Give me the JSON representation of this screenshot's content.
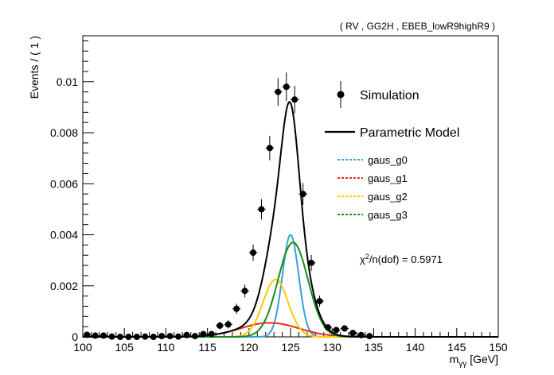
{
  "chart_data": {
    "type": "line",
    "title": "( RV , GG2H , EBEB_lowR9highR9 )",
    "xlabel_main": "m",
    "xlabel_sub": "γγ",
    "xlabel_unit": " [GeV]",
    "ylabel": "Events / ( 1 )",
    "xlim": [
      100,
      150
    ],
    "ylim": [
      0,
      0.0118
    ],
    "xticks": [
      100,
      105,
      110,
      115,
      120,
      125,
      130,
      135,
      140,
      145,
      150
    ],
    "xtick_labels": [
      "100",
      "105",
      "110",
      "115",
      "120",
      "125",
      "130",
      "135",
      "140",
      "145",
      "150"
    ],
    "yticks": [
      0,
      0.002,
      0.004,
      0.006,
      0.008,
      0.01
    ],
    "ytick_labels": [
      "0",
      "0.002",
      "0.004",
      "0.006",
      "0.008",
      "0.01"
    ],
    "grid": false,
    "legend_position": "right",
    "legend": {
      "simulation": "Simulation",
      "model": "Parametric Model",
      "components": [
        "gaus_g0",
        "gaus_g1",
        "gaus_g2",
        "gaus_g3"
      ]
    },
    "annotation": {
      "chi_prefix": "χ",
      "chi_sup": "2",
      "chi_rest": "/n(dof) = 0.5971"
    },
    "colors": {
      "model": "#000000",
      "gaus_g0": "#3a9ee0",
      "gaus_g1": "#e8291c",
      "gaus_g2": "#ffcc00",
      "gaus_g3": "#1b8a1b"
    },
    "simulation_points": {
      "x": [
        100.5,
        101.5,
        102.5,
        103.5,
        104.5,
        105.5,
        106.5,
        107.5,
        108.5,
        109.5,
        110.5,
        111.5,
        112.5,
        113.5,
        114.5,
        115.5,
        116.5,
        117.5,
        118.5,
        119.5,
        120.5,
        121.5,
        122.5,
        123.5,
        124.5,
        125.5,
        126.5,
        127.5,
        128.5,
        129.5,
        130.5,
        131.5,
        132.5,
        133.5,
        134.5
      ],
      "y": [
        8e-05,
        5e-05,
        5e-05,
        1e-05,
        0.0,
        0.0,
        0.0,
        1e-05,
        0.0,
        3e-05,
        3e-05,
        1e-05,
        7e-05,
        3e-05,
        0.00011,
        0.00011,
        0.00044,
        0.00049,
        0.0011,
        0.0018,
        0.0033,
        0.005,
        0.0074,
        0.0096,
        0.0098,
        0.0093,
        0.0056,
        0.0029,
        0.0014,
        0.00037,
        0.00027,
        0.00033,
        0.00015,
        7e-05,
        3e-05
      ],
      "yerr": [
        8e-05,
        8e-05,
        8e-05,
        5e-05,
        4e-05,
        4e-05,
        4e-05,
        5e-05,
        4e-05,
        6e-05,
        6e-05,
        5e-05,
        8e-05,
        6e-05,
        0.0001,
        0.0001,
        0.00015,
        0.00016,
        0.0002,
        0.00025,
        0.00032,
        0.0004,
        0.00048,
        0.00054,
        0.00056,
        0.00054,
        0.00043,
        0.00031,
        0.00022,
        0.00012,
        0.00011,
        0.00012,
        8e-05,
        6e-05,
        5e-05
      ]
    },
    "components": [
      {
        "name": "gaus_g0",
        "mean": 125.0,
        "sigma": 0.98,
        "amp": 0.004
      },
      {
        "name": "gaus_g1",
        "mean": 122.5,
        "sigma": 3.5,
        "amp": 0.00055
      },
      {
        "name": "gaus_g2",
        "mean": 123.2,
        "sigma": 1.5,
        "amp": 0.00225
      },
      {
        "name": "gaus_g3",
        "mean": 125.3,
        "sigma": 1.8,
        "amp": 0.0037
      }
    ]
  }
}
